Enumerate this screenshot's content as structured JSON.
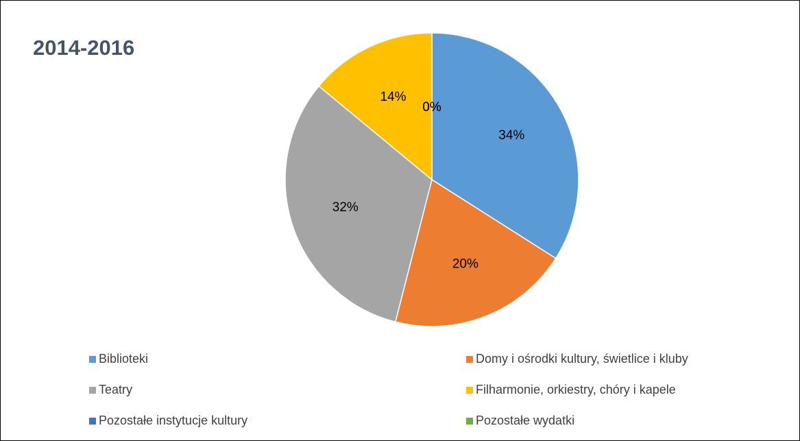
{
  "chart_data": {
    "type": "pie",
    "title": "2014-2016",
    "categories": [
      "Biblioteki",
      "Domy i ośrodki kultury, świetlice i kluby",
      "Teatry",
      "Filharmonie, orkiestry, chóry i kapele",
      "Pozostałe instytucje kultury",
      "Pozostałe wydatki"
    ],
    "values": [
      34,
      20,
      32,
      14,
      0,
      0
    ],
    "value_labels": [
      "34%",
      "20%",
      "32%",
      "14%",
      "0%",
      "0%"
    ],
    "colors": [
      "#5b9bd5",
      "#ed7d31",
      "#a5a5a5",
      "#ffc000",
      "#4472c4",
      "#70ad47"
    ],
    "legend": "bottom"
  }
}
